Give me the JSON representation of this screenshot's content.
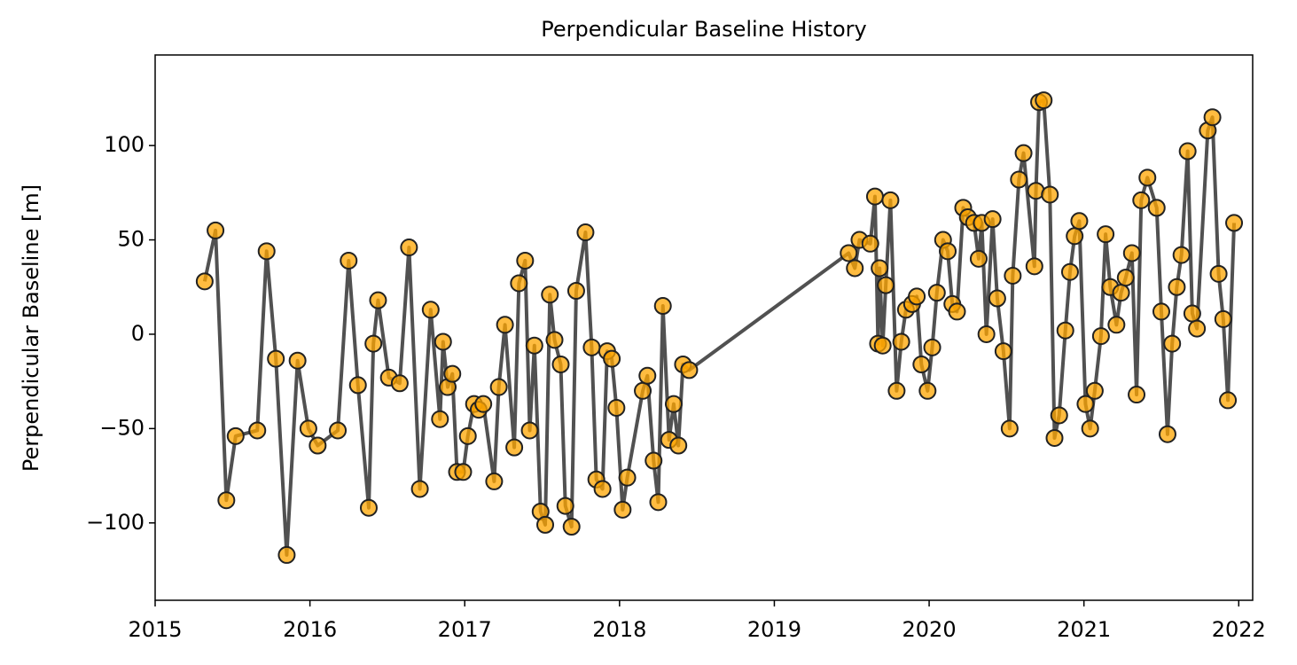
{
  "chart_data": {
    "type": "line",
    "title": "Perpendicular Baseline History",
    "y_label": "Perpendicular Baseline [m]",
    "x": [
      2015.32,
      2015.39,
      2015.46,
      2015.52,
      2015.66,
      2015.72,
      2015.78,
      2015.85,
      2015.92,
      2015.99,
      2016.05,
      2016.18,
      2016.25,
      2016.31,
      2016.38,
      2016.41,
      2016.44,
      2016.51,
      2016.58,
      2016.64,
      2016.71,
      2016.78,
      2016.84,
      2016.86,
      2016.89,
      2016.92,
      2016.95,
      2016.99,
      2017.02,
      2017.06,
      2017.09,
      2017.12,
      2017.19,
      2017.22,
      2017.26,
      2017.32,
      2017.35,
      2017.39,
      2017.42,
      2017.45,
      2017.49,
      2017.52,
      2017.55,
      2017.58,
      2017.62,
      2017.65,
      2017.69,
      2017.72,
      2017.78,
      2017.82,
      2017.85,
      2017.89,
      2017.92,
      2017.95,
      2017.98,
      2018.02,
      2018.05,
      2018.15,
      2018.18,
      2018.22,
      2018.25,
      2018.28,
      2018.32,
      2018.35,
      2018.38,
      2018.41,
      2018.45,
      2019.48,
      2019.52,
      2019.55,
      2019.62,
      2019.65,
      2019.67,
      2019.68,
      2019.7,
      2019.72,
      2019.75,
      2019.79,
      2019.82,
      2019.85,
      2019.89,
      2019.92,
      2019.95,
      2019.99,
      2020.02,
      2020.05,
      2020.09,
      2020.12,
      2020.15,
      2020.18,
      2020.22,
      2020.25,
      2020.29,
      2020.32,
      2020.34,
      2020.37,
      2020.41,
      2020.44,
      2020.48,
      2020.52,
      2020.54,
      2020.58,
      2020.61,
      2020.68,
      2020.69,
      2020.71,
      2020.74,
      2020.78,
      2020.81,
      2020.84,
      2020.88,
      2020.91,
      2020.94,
      2020.97,
      2021.01,
      2021.04,
      2021.07,
      2021.11,
      2021.14,
      2021.17,
      2021.21,
      2021.24,
      2021.27,
      2021.31,
      2021.34,
      2021.37,
      2021.41,
      2021.47,
      2021.5,
      2021.54,
      2021.57,
      2021.6,
      2021.63,
      2021.67,
      2021.7,
      2021.73,
      2021.8,
      2021.83,
      2021.87,
      2021.9,
      2021.93,
      2021.97
    ],
    "series": [
      {
        "color": "#ffa500",
        "line_color": "#333333",
        "values": [
          28,
          55,
          -88,
          -54,
          -51,
          44,
          -13,
          -117,
          -14,
          -50,
          -59,
          -51,
          39,
          -27,
          -92,
          -5,
          18,
          -23,
          -26,
          46,
          -82,
          13,
          -45,
          -4,
          -28,
          -21,
          -73,
          -73,
          -54,
          -37,
          -40,
          -37,
          -78,
          -28,
          5,
          -60,
          27,
          39,
          -51,
          -6,
          -94,
          -101,
          21,
          -3,
          -16,
          -91,
          -102,
          23,
          54,
          -7,
          -77,
          -82,
          -9,
          -13,
          -39,
          -93,
          -76,
          -30,
          -22,
          -67,
          -89,
          15,
          -56,
          -37,
          -59,
          -16,
          -19,
          43,
          35,
          50,
          48,
          73,
          -5,
          35,
          -6,
          26,
          71,
          -30,
          -4,
          13,
          16,
          20,
          -16,
          -30,
          -7,
          22,
          50,
          44,
          16,
          12,
          67,
          62,
          59,
          40,
          59,
          0,
          61,
          19,
          -9,
          -50,
          31,
          82,
          96,
          36,
          76,
          123,
          124,
          74,
          -55,
          -43,
          2,
          33,
          52,
          60,
          -37,
          -50,
          -30,
          -1,
          53,
          25,
          5,
          22,
          30,
          43,
          -32,
          71,
          83,
          67,
          12,
          -53,
          -5,
          25,
          42,
          97,
          11,
          3,
          108,
          115,
          32,
          8,
          -35,
          59
        ]
      }
    ],
    "xlim": [
      2015,
      2022.09
    ],
    "ylim": [
      -141,
      148
    ],
    "xticks": [
      2015,
      2016,
      2017,
      2018,
      2019,
      2020,
      2021,
      2022
    ],
    "yticks": [
      {
        "value": -100,
        "label": "−100"
      },
      {
        "value": -50,
        "label": "−50"
      },
      0,
      50,
      100
    ]
  }
}
